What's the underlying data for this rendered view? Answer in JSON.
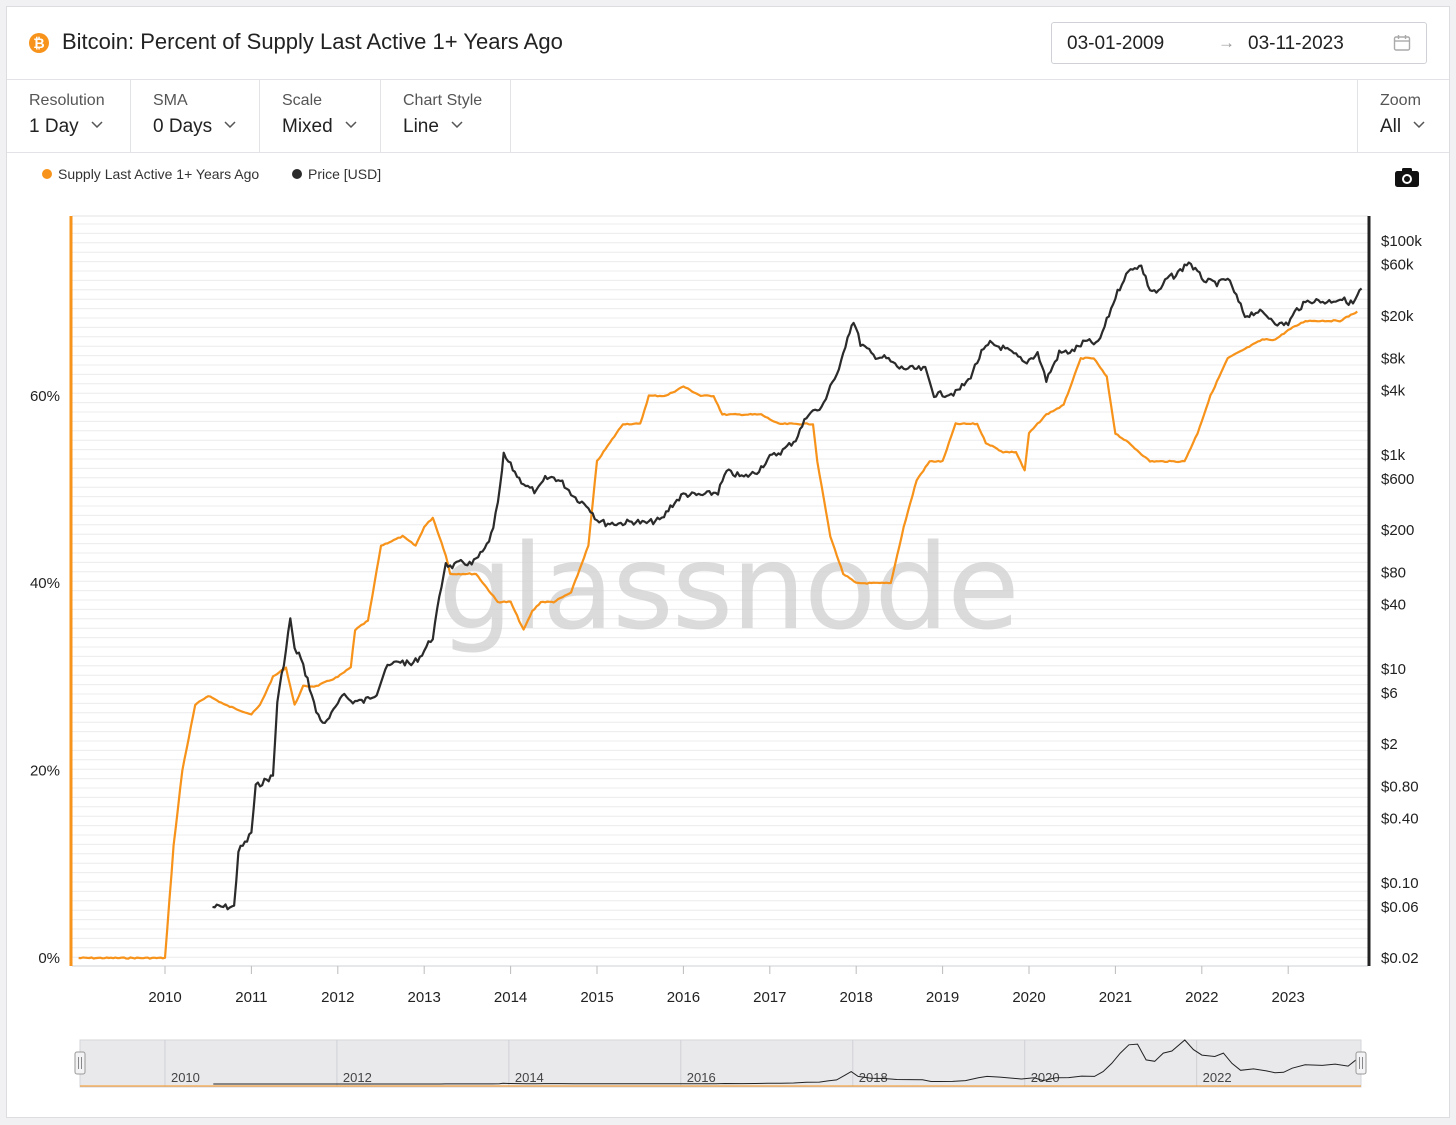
{
  "header": {
    "logo_glyph": "₿",
    "title": "Bitcoin: Percent of Supply Last Active 1+ Years Ago",
    "date_from": "03-01-2009",
    "date_arrow": "→",
    "date_to": "03-11-2023"
  },
  "controls": [
    {
      "label": "Resolution",
      "value": "1 Day"
    },
    {
      "label": "SMA",
      "value": "0 Days"
    },
    {
      "label": "Scale",
      "value": "Mixed"
    },
    {
      "label": "Chart Style",
      "value": "Line"
    }
  ],
  "zoom": {
    "label": "Zoom",
    "value": "All"
  },
  "watermark": "glassnode",
  "colors": {
    "supply": "#f7931a",
    "price": "#2b2b2b"
  },
  "chart_data": {
    "type": "line",
    "legend_placement": "top-left",
    "grid": true,
    "x_tick_labels": [
      "2010",
      "2011",
      "2012",
      "2013",
      "2014",
      "2015",
      "2016",
      "2017",
      "2018",
      "2019",
      "2020",
      "2021",
      "2022",
      "2023"
    ],
    "y_left": {
      "ticks": [
        "0%",
        "20%",
        "40%",
        "60%"
      ],
      "tick_values": [
        0,
        20,
        40,
        60
      ],
      "range": [
        0,
        80
      ]
    },
    "y_right": {
      "scale": "log",
      "ticks": [
        "$100k",
        "$60k",
        "$20k",
        "$8k",
        "$4k",
        "$1k",
        "$600",
        "$200",
        "$80",
        "$40",
        "$10",
        "$6",
        "$2",
        "$0.80",
        "$0.40",
        "$0.10",
        "$0.06",
        "$0.02"
      ],
      "tick_values": [
        100000,
        60000,
        20000,
        8000,
        4000,
        1000,
        600,
        200,
        80,
        40,
        10,
        6,
        2,
        0.8,
        0.4,
        0.1,
        0.06,
        0.02
      ]
    },
    "navigator_labels": [
      "2010",
      "2012",
      "2014",
      "2016",
      "2018",
      "2020",
      "2022"
    ],
    "series": [
      {
        "name": "Supply Last Active 1+ Years Ago",
        "unit": "%",
        "points": [
          [
            2009.0,
            0
          ],
          [
            2010.0,
            0
          ],
          [
            2010.1,
            12
          ],
          [
            2010.2,
            20
          ],
          [
            2010.35,
            27
          ],
          [
            2010.5,
            28
          ],
          [
            2010.7,
            27
          ],
          [
            2011.0,
            26
          ],
          [
            2011.1,
            27
          ],
          [
            2011.25,
            30
          ],
          [
            2011.4,
            31
          ],
          [
            2011.45,
            29
          ],
          [
            2011.5,
            27
          ],
          [
            2011.6,
            29
          ],
          [
            2011.75,
            29
          ],
          [
            2012.0,
            30
          ],
          [
            2012.15,
            31
          ],
          [
            2012.2,
            35
          ],
          [
            2012.35,
            36
          ],
          [
            2012.5,
            44
          ],
          [
            2012.75,
            45
          ],
          [
            2012.9,
            44
          ],
          [
            2013.0,
            46
          ],
          [
            2013.1,
            47
          ],
          [
            2013.25,
            43
          ],
          [
            2013.3,
            41
          ],
          [
            2013.6,
            41
          ],
          [
            2013.85,
            38
          ],
          [
            2014.0,
            38
          ],
          [
            2014.15,
            35
          ],
          [
            2014.25,
            37
          ],
          [
            2014.35,
            38
          ],
          [
            2014.5,
            38
          ],
          [
            2014.7,
            39
          ],
          [
            2014.9,
            44
          ],
          [
            2015.0,
            53
          ],
          [
            2015.15,
            55
          ],
          [
            2015.3,
            57
          ],
          [
            2015.5,
            57
          ],
          [
            2015.6,
            60
          ],
          [
            2015.8,
            60
          ],
          [
            2016.0,
            61
          ],
          [
            2016.2,
            60
          ],
          [
            2016.35,
            60
          ],
          [
            2016.45,
            58
          ],
          [
            2016.6,
            58
          ],
          [
            2016.75,
            58
          ],
          [
            2016.9,
            58
          ],
          [
            2017.1,
            57
          ],
          [
            2017.3,
            57
          ],
          [
            2017.5,
            57
          ],
          [
            2017.55,
            53
          ],
          [
            2017.7,
            45
          ],
          [
            2017.85,
            41
          ],
          [
            2018.0,
            40
          ],
          [
            2018.2,
            40
          ],
          [
            2018.4,
            40
          ],
          [
            2018.55,
            46
          ],
          [
            2018.7,
            51
          ],
          [
            2018.85,
            53
          ],
          [
            2019.0,
            53
          ],
          [
            2019.15,
            57
          ],
          [
            2019.4,
            57
          ],
          [
            2019.5,
            55
          ],
          [
            2019.7,
            54
          ],
          [
            2019.85,
            54
          ],
          [
            2019.95,
            52
          ],
          [
            2020.0,
            56
          ],
          [
            2020.2,
            58
          ],
          [
            2020.4,
            59
          ],
          [
            2020.6,
            64
          ],
          [
            2020.75,
            64
          ],
          [
            2020.9,
            62
          ],
          [
            2021.0,
            56
          ],
          [
            2021.15,
            55
          ],
          [
            2021.4,
            53
          ],
          [
            2021.6,
            53
          ],
          [
            2021.8,
            53
          ],
          [
            2021.95,
            56
          ],
          [
            2022.1,
            60
          ],
          [
            2022.3,
            64
          ],
          [
            2022.5,
            65
          ],
          [
            2022.7,
            66
          ],
          [
            2022.85,
            66
          ],
          [
            2023.0,
            67
          ],
          [
            2023.2,
            68
          ],
          [
            2023.4,
            68
          ],
          [
            2023.6,
            68
          ],
          [
            2023.8,
            69
          ]
        ]
      },
      {
        "name": "Price [USD]",
        "unit": "USD",
        "points": [
          [
            2010.55,
            0.06
          ],
          [
            2010.65,
            0.06
          ],
          [
            2010.8,
            0.06
          ],
          [
            2010.85,
            0.2
          ],
          [
            2010.95,
            0.25
          ],
          [
            2011.0,
            0.3
          ],
          [
            2011.05,
            0.8
          ],
          [
            2011.15,
            0.9
          ],
          [
            2011.25,
            1
          ],
          [
            2011.3,
            5
          ],
          [
            2011.4,
            15
          ],
          [
            2011.45,
            30
          ],
          [
            2011.5,
            15
          ],
          [
            2011.55,
            14
          ],
          [
            2011.65,
            8
          ],
          [
            2011.75,
            4
          ],
          [
            2011.85,
            3
          ],
          [
            2011.95,
            4
          ],
          [
            2012.05,
            6
          ],
          [
            2012.15,
            5
          ],
          [
            2012.3,
            5
          ],
          [
            2012.45,
            6
          ],
          [
            2012.55,
            10
          ],
          [
            2012.7,
            12
          ],
          [
            2012.85,
            11
          ],
          [
            2012.95,
            13
          ],
          [
            2013.1,
            20
          ],
          [
            2013.2,
            60
          ],
          [
            2013.25,
            100
          ],
          [
            2013.3,
            90
          ],
          [
            2013.45,
            100
          ],
          [
            2013.55,
            95
          ],
          [
            2013.7,
            130
          ],
          [
            2013.8,
            200
          ],
          [
            2013.88,
            500
          ],
          [
            2013.92,
            1000
          ],
          [
            2014.0,
            800
          ],
          [
            2014.1,
            600
          ],
          [
            2014.2,
            500
          ],
          [
            2014.3,
            450
          ],
          [
            2014.4,
            600
          ],
          [
            2014.5,
            620
          ],
          [
            2014.6,
            550
          ],
          [
            2014.75,
            400
          ],
          [
            2014.9,
            330
          ],
          [
            2015.0,
            250
          ],
          [
            2015.1,
            230
          ],
          [
            2015.25,
            230
          ],
          [
            2015.45,
            240
          ],
          [
            2015.55,
            230
          ],
          [
            2015.75,
            250
          ],
          [
            2015.85,
            330
          ],
          [
            2016.0,
            430
          ],
          [
            2016.2,
            420
          ],
          [
            2016.4,
            450
          ],
          [
            2016.5,
            700
          ],
          [
            2016.7,
            620
          ],
          [
            2016.85,
            700
          ],
          [
            2017.0,
            950
          ],
          [
            2017.15,
            1100
          ],
          [
            2017.3,
            1400
          ],
          [
            2017.45,
            2500
          ],
          [
            2017.6,
            2700
          ],
          [
            2017.7,
            4500
          ],
          [
            2017.8,
            6000
          ],
          [
            2017.9,
            13000
          ],
          [
            2017.97,
            18000
          ],
          [
            2018.05,
            11000
          ],
          [
            2018.2,
            8500
          ],
          [
            2018.35,
            8000
          ],
          [
            2018.5,
            6500
          ],
          [
            2018.65,
            6400
          ],
          [
            2018.8,
            6300
          ],
          [
            2018.9,
            3700
          ],
          [
            2019.0,
            3700
          ],
          [
            2019.15,
            3800
          ],
          [
            2019.3,
            5000
          ],
          [
            2019.45,
            9000
          ],
          [
            2019.55,
            11000
          ],
          [
            2019.7,
            10000
          ],
          [
            2019.85,
            8500
          ],
          [
            2019.95,
            7200
          ],
          [
            2020.1,
            9000
          ],
          [
            2020.2,
            5000
          ],
          [
            2020.35,
            9000
          ],
          [
            2020.5,
            9300
          ],
          [
            2020.65,
            11500
          ],
          [
            2020.8,
            11000
          ],
          [
            2020.9,
            18000
          ],
          [
            2021.0,
            30000
          ],
          [
            2021.1,
            45000
          ],
          [
            2021.2,
            57000
          ],
          [
            2021.3,
            58000
          ],
          [
            2021.4,
            35000
          ],
          [
            2021.5,
            33000
          ],
          [
            2021.6,
            45000
          ],
          [
            2021.7,
            48000
          ],
          [
            2021.85,
            64000
          ],
          [
            2021.95,
            50000
          ],
          [
            2022.05,
            42000
          ],
          [
            2022.2,
            40000
          ],
          [
            2022.3,
            45000
          ],
          [
            2022.4,
            30000
          ],
          [
            2022.5,
            20000
          ],
          [
            2022.65,
            22000
          ],
          [
            2022.8,
            19000
          ],
          [
            2022.9,
            16500
          ],
          [
            2023.0,
            17000
          ],
          [
            2023.1,
            23000
          ],
          [
            2023.25,
            28000
          ],
          [
            2023.45,
            27000
          ],
          [
            2023.6,
            29000
          ],
          [
            2023.75,
            26000
          ],
          [
            2023.85,
            36000
          ]
        ]
      }
    ]
  }
}
